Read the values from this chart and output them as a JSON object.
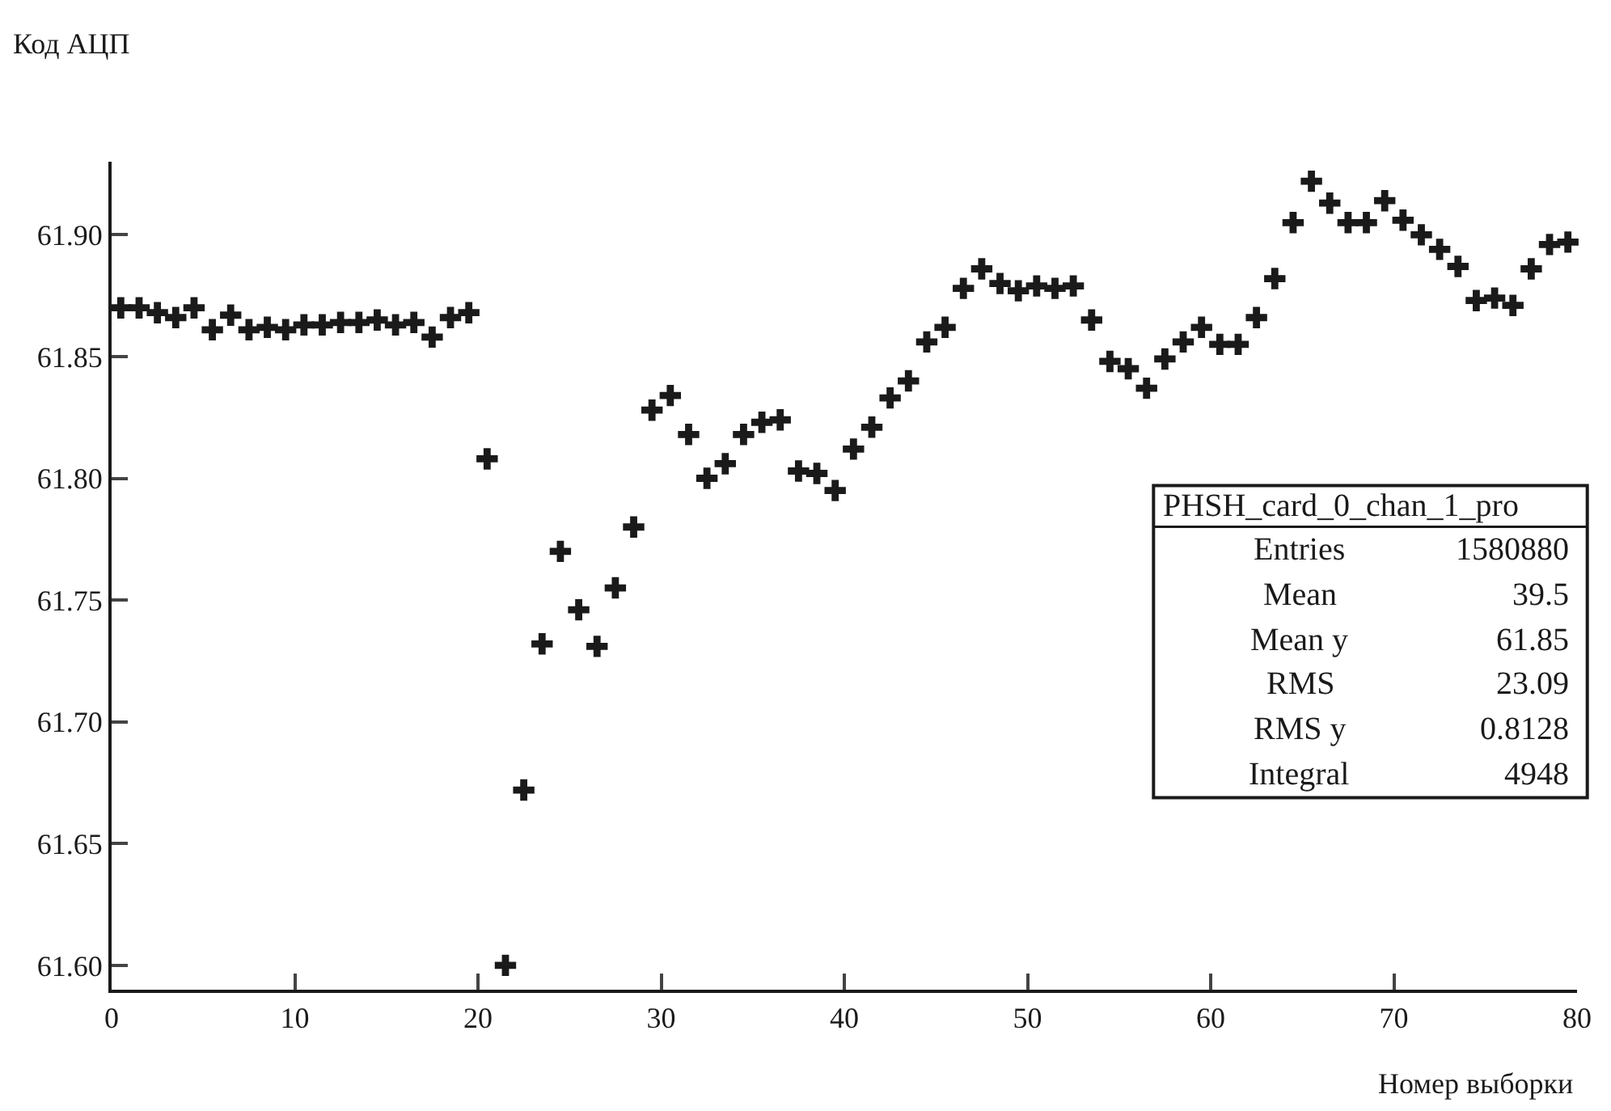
{
  "chart_data": {
    "type": "scatter",
    "xlabel": "Номер выборки",
    "ylabel": "Код АЦП",
    "x": [
      0.5,
      1.5,
      2.5,
      3.5,
      4.5,
      5.5,
      6.5,
      7.5,
      8.5,
      9.5,
      10.5,
      11.5,
      12.5,
      13.5,
      14.5,
      15.5,
      16.5,
      17.5,
      18.5,
      19.5,
      20.5,
      21.5,
      22.5,
      23.5,
      24.5,
      25.5,
      26.5,
      27.5,
      28.5,
      29.5,
      30.5,
      31.5,
      32.5,
      33.5,
      34.5,
      35.5,
      36.5,
      37.5,
      38.5,
      39.5,
      40.5,
      41.5,
      42.5,
      43.5,
      44.5,
      45.5,
      46.5,
      47.5,
      48.5,
      49.5,
      50.5,
      51.5,
      52.5,
      53.5,
      54.5,
      55.5,
      56.5,
      57.5,
      58.5,
      59.5,
      60.5,
      61.5,
      62.5,
      63.5,
      64.5,
      65.5,
      66.5,
      67.5,
      68.5,
      69.5,
      70.5,
      71.5,
      72.5,
      73.5,
      74.5,
      75.5,
      76.5,
      77.5,
      78.5,
      79.5
    ],
    "series": [
      {
        "color": "#1a1a1a",
        "values": [
          61.87,
          61.87,
          61.868,
          61.866,
          61.87,
          61.861,
          61.867,
          61.861,
          61.862,
          61.861,
          61.863,
          61.863,
          61.864,
          61.864,
          61.865,
          61.863,
          61.864,
          61.858,
          61.866,
          61.868,
          61.808,
          61.6,
          61.672,
          61.732,
          61.77,
          61.746,
          61.731,
          61.755,
          61.78,
          61.828,
          61.834,
          61.818,
          61.8,
          61.806,
          61.818,
          61.823,
          61.824,
          61.803,
          61.802,
          61.795,
          61.812,
          61.821,
          61.833,
          61.84,
          61.856,
          61.862,
          61.878,
          61.886,
          61.88,
          61.877,
          61.879,
          61.878,
          61.879,
          61.865,
          61.848,
          61.845,
          61.837,
          61.849,
          61.856,
          61.862,
          61.855,
          61.855,
          61.866,
          61.882,
          61.905,
          61.922,
          61.913,
          61.905,
          61.905,
          61.914,
          61.906,
          61.9,
          61.894,
          61.887,
          61.873,
          61.874,
          61.871,
          61.886,
          61.896,
          61.897
        ]
      }
    ],
    "xlim": [
      0,
      80
    ],
    "xticks": [
      0,
      10,
      20,
      30,
      40,
      50,
      60,
      70,
      80
    ],
    "ylim": [
      61.59,
      61.93
    ],
    "yticks": [
      {
        "value": 61.6,
        "label": "61.60"
      },
      {
        "value": 61.65,
        "label": "61.65"
      },
      {
        "value": 61.7,
        "label": "61.70"
      },
      {
        "value": 61.75,
        "label": "61.75"
      },
      {
        "value": 61.8,
        "label": "61.80"
      },
      {
        "value": 61.85,
        "label": "61.85"
      },
      {
        "value": 61.9,
        "label": "61.90"
      }
    ],
    "marker": "cross",
    "annotations": [
      "PHSH_card_0_chan_1_pro",
      "Entries 1580880",
      "Mean 39.5",
      "Mean y 61.85",
      "RMS 23.09",
      "RMS y 0.8128",
      "Integral 4948"
    ]
  }
}
